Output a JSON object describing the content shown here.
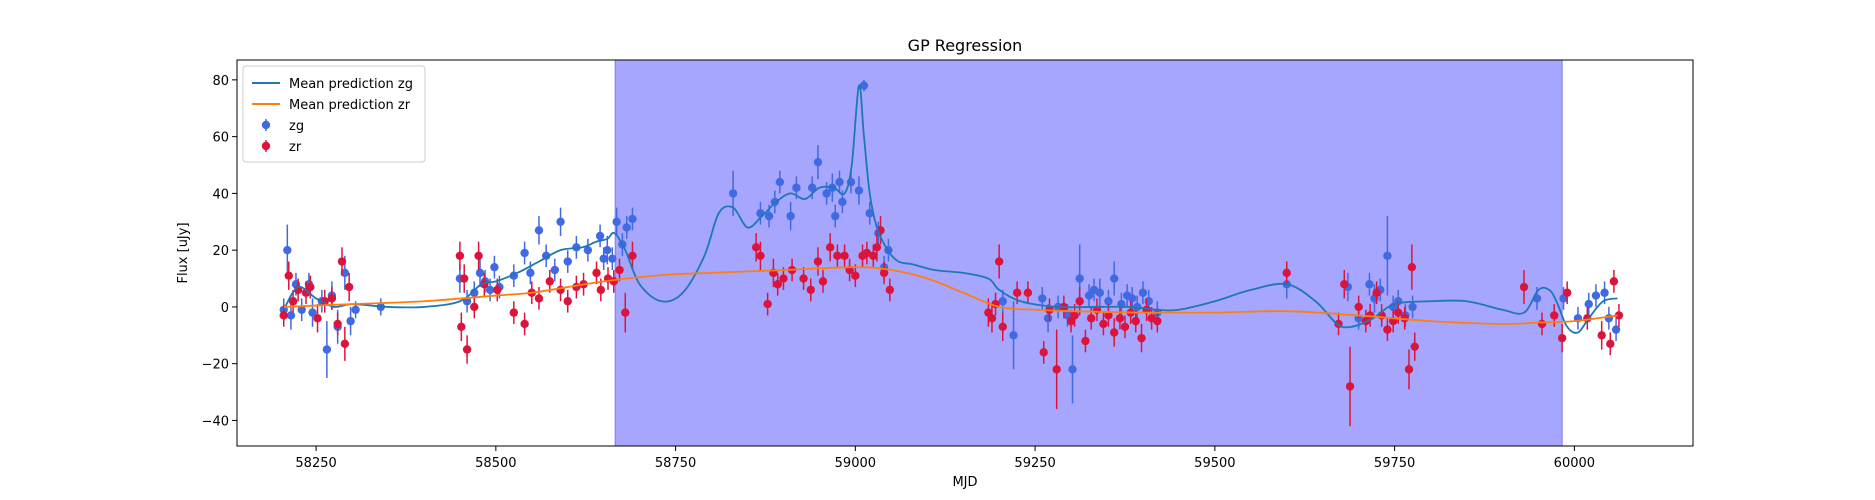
{
  "chart_data": {
    "type": "scatter",
    "title": "GP Regression",
    "xlabel": "MJD",
    "ylabel": "Flux [uJy]",
    "xlim": [
      58140,
      60165
    ],
    "ylim": [
      -49,
      87
    ],
    "xticks": [
      58250,
      58500,
      58750,
      59000,
      59250,
      59500,
      59750,
      60000
    ],
    "yticks": [
      -40,
      -20,
      0,
      20,
      40,
      60,
      80
    ],
    "legend_position": "upper-left",
    "shaded_region": {
      "x": [
        58666,
        59983
      ],
      "color": "#a6a6ff"
    },
    "series": [
      {
        "name": "Mean prediction zg",
        "kind": "line",
        "color": "#1f77b4",
        "x": [
          58205,
          58225,
          58250,
          58275,
          58300,
          58350,
          58400,
          58450,
          58480,
          58500,
          58530,
          58560,
          58590,
          58620,
          58640,
          58655,
          58665,
          58680,
          58700,
          58730,
          58760,
          58790,
          58810,
          58830,
          58850,
          58870,
          58890,
          58910,
          58930,
          58950,
          58970,
          58985,
          58995,
          59005,
          59012,
          59020,
          59030,
          59045,
          59060,
          59080,
          59110,
          59150,
          59185,
          59200,
          59230,
          59280,
          59330,
          59380,
          59420,
          59450,
          59500,
          59550,
          59600,
          59640,
          59670,
          59690,
          59720,
          59750,
          59800,
          59850,
          59900,
          59930,
          59950,
          59965,
          59975,
          59990,
          60005,
          60020,
          60040,
          60060
        ],
        "y": [
          -1,
          7,
          3,
          0,
          1,
          0,
          0,
          2,
          8,
          9,
          12,
          16,
          20,
          21,
          23,
          24,
          26,
          20,
          8,
          2,
          5,
          18,
          33,
          35,
          28,
          32,
          37,
          40,
          38,
          42,
          42,
          40,
          50,
          78,
          60,
          40,
          28,
          20,
          16,
          15,
          13,
          12,
          10,
          6,
          2,
          0,
          0,
          0,
          -1,
          -1,
          2,
          6,
          8,
          2,
          -6,
          -7,
          -4,
          1,
          2,
          2,
          -1,
          -2,
          6,
          6,
          2,
          -7,
          -9,
          -4,
          2,
          3
        ]
      },
      {
        "name": "Mean prediction zr",
        "kind": "line",
        "color": "#ff7f0e",
        "x": [
          58205,
          58300,
          58400,
          58500,
          58550,
          58600,
          58650,
          58700,
          58750,
          58800,
          58900,
          59000,
          59050,
          59100,
          59150,
          59200,
          59250,
          59300,
          59400,
          59500,
          59600,
          59700,
          59800,
          59900,
          59950,
          60000,
          60060
        ],
        "y": [
          0,
          1,
          2,
          4,
          5,
          7,
          9,
          10.5,
          11.5,
          12,
          13,
          14,
          13,
          10,
          5,
          0,
          -1,
          -1.5,
          -2,
          -2,
          -1.5,
          -3,
          -5,
          -6,
          -5.5,
          -5,
          -3
        ]
      },
      {
        "name": "zg",
        "kind": "errorbar",
        "color": "#4169e1",
        "points": [
          [
            58205,
            -1,
            4
          ],
          [
            58210,
            20,
            9
          ],
          [
            58215,
            -3,
            5
          ],
          [
            58222,
            8,
            4
          ],
          [
            58230,
            -1,
            4
          ],
          [
            58240,
            8,
            4
          ],
          [
            58245,
            -2,
            5
          ],
          [
            58258,
            2,
            4
          ],
          [
            58265,
            -15,
            10
          ],
          [
            58272,
            4,
            5
          ],
          [
            58280,
            -7,
            6
          ],
          [
            58290,
            12,
            6
          ],
          [
            58298,
            -5,
            5
          ],
          [
            58305,
            -1,
            3
          ],
          [
            58340,
            0,
            3
          ],
          [
            58450,
            10,
            5
          ],
          [
            58460,
            2,
            4
          ],
          [
            58470,
            5,
            4
          ],
          [
            58478,
            12,
            5
          ],
          [
            58485,
            9,
            4
          ],
          [
            58492,
            6,
            4
          ],
          [
            58498,
            14,
            4
          ],
          [
            58505,
            7,
            4
          ],
          [
            58525,
            11,
            4
          ],
          [
            58540,
            19,
            4
          ],
          [
            58548,
            12,
            4
          ],
          [
            58560,
            27,
            5
          ],
          [
            58570,
            18,
            4
          ],
          [
            58582,
            13,
            4
          ],
          [
            58590,
            30,
            5
          ],
          [
            58600,
            16,
            4
          ],
          [
            58612,
            21,
            4
          ],
          [
            58628,
            20,
            4
          ],
          [
            58645,
            25,
            4
          ],
          [
            58650,
            17,
            4
          ],
          [
            58655,
            20,
            5
          ],
          [
            58662,
            17,
            4
          ],
          [
            58668,
            30,
            5
          ],
          [
            58676,
            22,
            4
          ],
          [
            58682,
            28,
            4
          ],
          [
            58690,
            31,
            4
          ],
          [
            58830,
            40,
            8
          ],
          [
            58868,
            33,
            4
          ],
          [
            58880,
            32,
            4
          ],
          [
            58888,
            37,
            4
          ],
          [
            58895,
            44,
            4
          ],
          [
            58910,
            32,
            5
          ],
          [
            58918,
            42,
            4
          ],
          [
            58940,
            42,
            4
          ],
          [
            58948,
            51,
            6
          ],
          [
            58960,
            40,
            4
          ],
          [
            58968,
            42,
            5
          ],
          [
            58972,
            32,
            4
          ],
          [
            58978,
            44,
            4
          ],
          [
            58982,
            37,
            4
          ],
          [
            58994,
            44,
            4
          ],
          [
            59005,
            41,
            5
          ],
          [
            59012,
            78,
            2
          ],
          [
            59020,
            33,
            4
          ],
          [
            59032,
            26,
            4
          ],
          [
            59040,
            14,
            4
          ],
          [
            59046,
            20,
            4
          ],
          [
            59205,
            2,
            4
          ],
          [
            59220,
            -10,
            12
          ],
          [
            59260,
            3,
            4
          ],
          [
            59268,
            -4,
            5
          ],
          [
            59282,
            0,
            4
          ],
          [
            59295,
            -3,
            4
          ],
          [
            59302,
            -22,
            12
          ],
          [
            59312,
            10,
            12
          ],
          [
            59325,
            4,
            4
          ],
          [
            59332,
            6,
            4
          ],
          [
            59340,
            5,
            5
          ],
          [
            59352,
            2,
            4
          ],
          [
            59360,
            10,
            6
          ],
          [
            59370,
            1,
            4
          ],
          [
            59378,
            4,
            4
          ],
          [
            59385,
            3,
            4
          ],
          [
            59392,
            0,
            4
          ],
          [
            59400,
            5,
            4
          ],
          [
            59408,
            2,
            4
          ],
          [
            59420,
            -2,
            4
          ],
          [
            59600,
            8,
            5
          ],
          [
            59685,
            7,
            5
          ],
          [
            59700,
            -4,
            4
          ],
          [
            59715,
            8,
            4
          ],
          [
            59722,
            3,
            5
          ],
          [
            59730,
            6,
            4
          ],
          [
            59740,
            18,
            14
          ],
          [
            59748,
            0,
            4
          ],
          [
            59755,
            2,
            4
          ],
          [
            59765,
            -3,
            4
          ],
          [
            59775,
            0,
            4
          ],
          [
            59948,
            3,
            4
          ],
          [
            59985,
            3,
            4
          ],
          [
            60005,
            -4,
            4
          ],
          [
            60020,
            1,
            4
          ],
          [
            60030,
            4,
            4
          ],
          [
            60042,
            5,
            4
          ],
          [
            60048,
            -4,
            4
          ],
          [
            60058,
            -8,
            4
          ]
        ]
      },
      {
        "name": "zr",
        "kind": "errorbar",
        "color": "#dc143c",
        "points": [
          [
            58205,
            -3,
            4
          ],
          [
            58212,
            11,
            5
          ],
          [
            58218,
            2,
            4
          ],
          [
            58225,
            6,
            4
          ],
          [
            58236,
            5,
            4
          ],
          [
            58242,
            7,
            4
          ],
          [
            58252,
            -4,
            5
          ],
          [
            58262,
            2,
            4
          ],
          [
            58272,
            3,
            4
          ],
          [
            58280,
            -6,
            4
          ],
          [
            58286,
            16,
            5
          ],
          [
            58290,
            -13,
            6
          ],
          [
            58296,
            7,
            5
          ],
          [
            58450,
            18,
            5
          ],
          [
            58452,
            -7,
            5
          ],
          [
            58456,
            10,
            5
          ],
          [
            58460,
            -15,
            5
          ],
          [
            58470,
            0,
            4
          ],
          [
            58476,
            18,
            5
          ],
          [
            58484,
            8,
            4
          ],
          [
            58502,
            6,
            4
          ],
          [
            58525,
            -2,
            4
          ],
          [
            58540,
            -6,
            4
          ],
          [
            58550,
            5,
            4
          ],
          [
            58560,
            3,
            4
          ],
          [
            58575,
            9,
            4
          ],
          [
            58590,
            6,
            4
          ],
          [
            58600,
            2,
            4
          ],
          [
            58612,
            7,
            4
          ],
          [
            58622,
            8,
            4
          ],
          [
            58640,
            12,
            4
          ],
          [
            58646,
            6,
            4
          ],
          [
            58656,
            10,
            4
          ],
          [
            58664,
            9,
            4
          ],
          [
            58672,
            13,
            4
          ],
          [
            58680,
            -2,
            7
          ],
          [
            58690,
            18,
            5
          ],
          [
            58862,
            21,
            5
          ],
          [
            58868,
            18,
            5
          ],
          [
            58878,
            1,
            4
          ],
          [
            58886,
            12,
            5
          ],
          [
            58892,
            8,
            4
          ],
          [
            58900,
            10,
            4
          ],
          [
            58912,
            13,
            4
          ],
          [
            58928,
            10,
            4
          ],
          [
            58938,
            6,
            4
          ],
          [
            58948,
            16,
            5
          ],
          [
            58955,
            9,
            4
          ],
          [
            58965,
            21,
            5
          ],
          [
            58975,
            18,
            4
          ],
          [
            58985,
            18,
            4
          ],
          [
            58992,
            13,
            4
          ],
          [
            59000,
            11,
            4
          ],
          [
            59010,
            18,
            4
          ],
          [
            59016,
            19,
            4
          ],
          [
            59025,
            18,
            4
          ],
          [
            59030,
            21,
            5
          ],
          [
            59035,
            27,
            5
          ],
          [
            59040,
            12,
            4
          ],
          [
            59048,
            6,
            4
          ],
          [
            59185,
            -2,
            5
          ],
          [
            59190,
            -4,
            5
          ],
          [
            59195,
            1,
            4
          ],
          [
            59200,
            16,
            6
          ],
          [
            59205,
            -7,
            5
          ],
          [
            59225,
            5,
            4
          ],
          [
            59240,
            5,
            4
          ],
          [
            59262,
            -16,
            4
          ],
          [
            59270,
            -1,
            4
          ],
          [
            59280,
            -22,
            14
          ],
          [
            59290,
            0,
            4
          ],
          [
            59300,
            -5,
            4
          ],
          [
            59305,
            -3,
            4
          ],
          [
            59312,
            2,
            5
          ],
          [
            59320,
            -12,
            4
          ],
          [
            59328,
            -4,
            4
          ],
          [
            59336,
            -1,
            4
          ],
          [
            59345,
            -6,
            4
          ],
          [
            59352,
            -3,
            4
          ],
          [
            59360,
            -9,
            5
          ],
          [
            59368,
            -4,
            4
          ],
          [
            59375,
            -7,
            4
          ],
          [
            59383,
            -2,
            4
          ],
          [
            59390,
            -5,
            4
          ],
          [
            59398,
            -11,
            5
          ],
          [
            59405,
            -1,
            4
          ],
          [
            59412,
            -4,
            4
          ],
          [
            59420,
            -5,
            4
          ],
          [
            59600,
            12,
            4
          ],
          [
            59672,
            -6,
            4
          ],
          [
            59680,
            8,
            5
          ],
          [
            59688,
            -28,
            14
          ],
          [
            59700,
            0,
            4
          ],
          [
            59710,
            -5,
            4
          ],
          [
            59716,
            -3,
            4
          ],
          [
            59725,
            5,
            4
          ],
          [
            59732,
            -3,
            4
          ],
          [
            59740,
            -8,
            4
          ],
          [
            59748,
            -5,
            4
          ],
          [
            59755,
            -2,
            4
          ],
          [
            59764,
            -4,
            4
          ],
          [
            59770,
            -22,
            7
          ],
          [
            59774,
            14,
            8
          ],
          [
            59778,
            -14,
            5
          ],
          [
            59930,
            7,
            6
          ],
          [
            59955,
            -6,
            4
          ],
          [
            59972,
            -3,
            4
          ],
          [
            59983,
            -11,
            5
          ],
          [
            59990,
            5,
            4
          ],
          [
            60018,
            -4,
            4
          ],
          [
            60038,
            -10,
            5
          ],
          [
            60050,
            -13,
            4
          ],
          [
            60055,
            9,
            4
          ],
          [
            60062,
            -3,
            4
          ]
        ]
      }
    ]
  }
}
